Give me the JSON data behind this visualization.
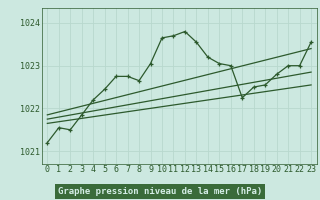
{
  "title": "Graphe pression niveau de la mer (hPa)",
  "bg_color": "#cce8e0",
  "grid_color": "#aaccbb",
  "line_color": "#2d5a2d",
  "label_bg": "#3a6b3a",
  "label_fg": "#cce8e0",
  "ylim": [
    1020.7,
    1024.35
  ],
  "xlim": [
    -0.5,
    23.5
  ],
  "yticks": [
    1021,
    1022,
    1023,
    1024
  ],
  "xticks": [
    0,
    1,
    2,
    3,
    4,
    5,
    6,
    7,
    8,
    9,
    10,
    11,
    12,
    13,
    14,
    15,
    16,
    17,
    18,
    19,
    20,
    21,
    22,
    23
  ],
  "series_x": [
    0,
    1,
    2,
    3,
    4,
    5,
    6,
    7,
    8,
    9,
    10,
    11,
    12,
    13,
    14,
    15,
    16,
    17,
    18,
    19,
    20,
    21,
    22,
    23
  ],
  "series_y": [
    1021.2,
    1021.55,
    1021.5,
    1021.85,
    1022.2,
    1022.45,
    1022.75,
    1022.75,
    1022.65,
    1023.05,
    1023.65,
    1023.7,
    1023.8,
    1023.55,
    1023.2,
    1023.05,
    1023.0,
    1022.25,
    1022.5,
    1022.55,
    1022.8,
    1023.0,
    1023.0,
    1023.55
  ],
  "trend1_x": [
    0,
    23
  ],
  "trend1_y": [
    1021.65,
    1022.55
  ],
  "trend2_x": [
    0,
    23
  ],
  "trend2_y": [
    1021.75,
    1022.85
  ],
  "trend3_x": [
    0,
    23
  ],
  "trend3_y": [
    1021.85,
    1023.4
  ],
  "tick_fontsize": 6.0,
  "xlabel_fontsize": 6.5
}
